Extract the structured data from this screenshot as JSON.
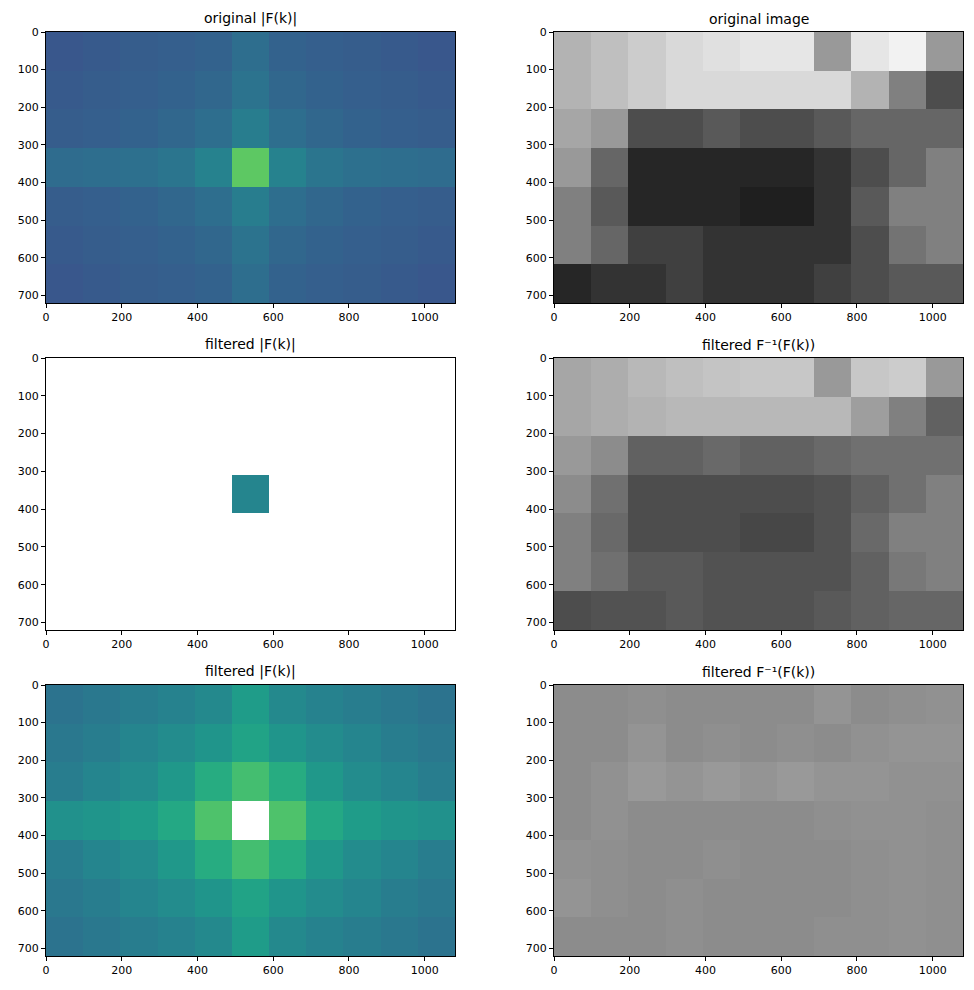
{
  "chart_data": [
    {
      "type": "heatmap",
      "title": "original |F(k)|",
      "color": "viridis",
      "zlim": [
        0,
        1
      ],
      "xlim": [
        0,
        1080
      ],
      "ylim": [
        720,
        0
      ],
      "xticks": [
        0,
        200,
        400,
        600,
        800,
        1000
      ],
      "yticks": [
        0,
        100,
        200,
        300,
        400,
        500,
        600,
        700
      ],
      "cells": [
        [
          0.27,
          0.28,
          0.29,
          0.3,
          0.31,
          0.36,
          0.31,
          0.3,
          0.29,
          0.28,
          0.27
        ],
        [
          0.28,
          0.29,
          0.3,
          0.31,
          0.33,
          0.38,
          0.33,
          0.31,
          0.3,
          0.29,
          0.28
        ],
        [
          0.29,
          0.3,
          0.31,
          0.33,
          0.36,
          0.42,
          0.36,
          0.33,
          0.31,
          0.3,
          0.29
        ],
        [
          0.35,
          0.36,
          0.37,
          0.39,
          0.44,
          0.75,
          0.44,
          0.39,
          0.37,
          0.36,
          0.35
        ],
        [
          0.29,
          0.3,
          0.31,
          0.33,
          0.36,
          0.42,
          0.36,
          0.33,
          0.31,
          0.3,
          0.29
        ],
        [
          0.28,
          0.29,
          0.3,
          0.31,
          0.33,
          0.38,
          0.33,
          0.31,
          0.3,
          0.29,
          0.28
        ],
        [
          0.27,
          0.28,
          0.29,
          0.3,
          0.31,
          0.36,
          0.31,
          0.3,
          0.29,
          0.28,
          0.27
        ]
      ]
    },
    {
      "type": "heatmap",
      "title": "original image",
      "color": "gray",
      "zlim": [
        0,
        1
      ],
      "xlim": [
        0,
        1080
      ],
      "ylim": [
        720,
        0
      ],
      "xticks": [
        0,
        200,
        400,
        600,
        800,
        1000
      ],
      "yticks": [
        0,
        100,
        200,
        300,
        400,
        500,
        600,
        700
      ],
      "cells": [
        [
          0.7,
          0.75,
          0.8,
          0.85,
          0.88,
          0.9,
          0.9,
          0.6,
          0.9,
          0.95,
          0.6
        ],
        [
          0.7,
          0.75,
          0.8,
          0.85,
          0.85,
          0.85,
          0.85,
          0.85,
          0.7,
          0.5,
          0.3
        ],
        [
          0.65,
          0.6,
          0.3,
          0.3,
          0.35,
          0.3,
          0.3,
          0.35,
          0.4,
          0.4,
          0.4
        ],
        [
          0.6,
          0.4,
          0.15,
          0.15,
          0.15,
          0.15,
          0.15,
          0.2,
          0.3,
          0.4,
          0.5
        ],
        [
          0.5,
          0.35,
          0.15,
          0.15,
          0.15,
          0.12,
          0.12,
          0.2,
          0.35,
          0.5,
          0.5
        ],
        [
          0.5,
          0.4,
          0.25,
          0.25,
          0.2,
          0.2,
          0.2,
          0.2,
          0.3,
          0.45,
          0.5
        ],
        [
          0.15,
          0.2,
          0.2,
          0.25,
          0.2,
          0.2,
          0.2,
          0.25,
          0.3,
          0.35,
          0.35
        ]
      ]
    },
    {
      "type": "heatmap",
      "title": "filtered |F(k)|",
      "color": "viridis",
      "zlim": [
        0,
        1
      ],
      "xlim": [
        0,
        1080
      ],
      "ylim": [
        720,
        0
      ],
      "xticks": [
        0,
        200,
        400,
        600,
        800,
        1000
      ],
      "yticks": [
        0,
        100,
        200,
        300,
        400,
        500,
        600,
        700
      ],
      "cells": [
        [
          null,
          null,
          null,
          null,
          null,
          null,
          null,
          null,
          null,
          null,
          null
        ],
        [
          null,
          null,
          null,
          null,
          null,
          null,
          null,
          null,
          null,
          null,
          null
        ],
        [
          null,
          null,
          null,
          null,
          null,
          null,
          null,
          null,
          null,
          null,
          null
        ],
        [
          null,
          null,
          null,
          null,
          null,
          0.45,
          null,
          null,
          null,
          null,
          null
        ],
        [
          null,
          null,
          null,
          null,
          null,
          null,
          null,
          null,
          null,
          null,
          null
        ],
        [
          null,
          null,
          null,
          null,
          null,
          null,
          null,
          null,
          null,
          null,
          null
        ],
        [
          null,
          null,
          null,
          null,
          null,
          null,
          null,
          null,
          null,
          null,
          null
        ]
      ]
    },
    {
      "type": "heatmap",
      "title": "filtered F⁻¹(F(k))",
      "color": "gray",
      "zlim": [
        0,
        1
      ],
      "xlim": [
        0,
        1080
      ],
      "ylim": [
        720,
        0
      ],
      "xticks": [
        0,
        200,
        400,
        600,
        800,
        1000
      ],
      "yticks": [
        0,
        100,
        200,
        300,
        400,
        500,
        600,
        700
      ],
      "cells": [
        [
          0.65,
          0.68,
          0.72,
          0.75,
          0.77,
          0.78,
          0.78,
          0.6,
          0.78,
          0.8,
          0.6
        ],
        [
          0.65,
          0.68,
          0.7,
          0.72,
          0.72,
          0.72,
          0.72,
          0.72,
          0.62,
          0.5,
          0.38
        ],
        [
          0.6,
          0.55,
          0.38,
          0.38,
          0.41,
          0.38,
          0.38,
          0.41,
          0.44,
          0.44,
          0.44
        ],
        [
          0.55,
          0.44,
          0.3,
          0.3,
          0.3,
          0.3,
          0.3,
          0.32,
          0.38,
          0.44,
          0.5
        ],
        [
          0.5,
          0.41,
          0.3,
          0.3,
          0.3,
          0.28,
          0.28,
          0.32,
          0.41,
          0.5,
          0.5
        ],
        [
          0.5,
          0.44,
          0.35,
          0.35,
          0.32,
          0.32,
          0.32,
          0.32,
          0.38,
          0.47,
          0.5
        ],
        [
          0.3,
          0.32,
          0.32,
          0.35,
          0.32,
          0.32,
          0.32,
          0.35,
          0.38,
          0.4,
          0.4
        ]
      ]
    },
    {
      "type": "heatmap",
      "title": "filtered |F(k)|",
      "color": "viridis",
      "zlim": [
        0,
        1
      ],
      "xlim": [
        0,
        1080
      ],
      "ylim": [
        720,
        0
      ],
      "xticks": [
        0,
        200,
        400,
        600,
        800,
        1000
      ],
      "yticks": [
        0,
        100,
        200,
        300,
        400,
        500,
        600,
        700
      ],
      "cells": [
        [
          0.38,
          0.4,
          0.42,
          0.44,
          0.47,
          0.55,
          0.47,
          0.44,
          0.42,
          0.4,
          0.38
        ],
        [
          0.4,
          0.42,
          0.45,
          0.48,
          0.52,
          0.58,
          0.52,
          0.48,
          0.45,
          0.42,
          0.4
        ],
        [
          0.42,
          0.45,
          0.48,
          0.53,
          0.62,
          0.7,
          0.62,
          0.53,
          0.48,
          0.45,
          0.42
        ],
        [
          0.5,
          0.52,
          0.55,
          0.6,
          0.72,
          null,
          0.72,
          0.6,
          0.55,
          0.52,
          0.5
        ],
        [
          0.42,
          0.45,
          0.48,
          0.53,
          0.62,
          0.7,
          0.62,
          0.53,
          0.48,
          0.45,
          0.42
        ],
        [
          0.4,
          0.42,
          0.45,
          0.48,
          0.52,
          0.58,
          0.52,
          0.48,
          0.45,
          0.42,
          0.4
        ],
        [
          0.38,
          0.4,
          0.42,
          0.44,
          0.47,
          0.55,
          0.47,
          0.44,
          0.42,
          0.4,
          0.38
        ]
      ]
    },
    {
      "type": "heatmap",
      "title": "filtered F⁻¹(F(k))",
      "color": "gray",
      "zlim": [
        0,
        1
      ],
      "xlim": [
        0,
        1080
      ],
      "ylim": [
        720,
        0
      ],
      "xticks": [
        0,
        200,
        400,
        600,
        800,
        1000
      ],
      "yticks": [
        0,
        100,
        200,
        300,
        400,
        500,
        600,
        700
      ],
      "cells": [
        [
          0.55,
          0.55,
          0.56,
          0.55,
          0.55,
          0.55,
          0.55,
          0.58,
          0.55,
          0.56,
          0.57
        ],
        [
          0.55,
          0.55,
          0.58,
          0.55,
          0.56,
          0.55,
          0.56,
          0.55,
          0.57,
          0.58,
          0.58
        ],
        [
          0.55,
          0.57,
          0.6,
          0.58,
          0.6,
          0.58,
          0.6,
          0.58,
          0.58,
          0.57,
          0.57
        ],
        [
          0.55,
          0.57,
          0.55,
          0.55,
          0.55,
          0.55,
          0.55,
          0.56,
          0.57,
          0.57,
          0.56
        ],
        [
          0.57,
          0.56,
          0.55,
          0.55,
          0.56,
          0.55,
          0.55,
          0.55,
          0.56,
          0.57,
          0.56
        ],
        [
          0.58,
          0.56,
          0.55,
          0.56,
          0.55,
          0.55,
          0.55,
          0.55,
          0.56,
          0.57,
          0.56
        ],
        [
          0.55,
          0.55,
          0.55,
          0.56,
          0.55,
          0.55,
          0.55,
          0.56,
          0.56,
          0.57,
          0.56
        ]
      ]
    }
  ]
}
